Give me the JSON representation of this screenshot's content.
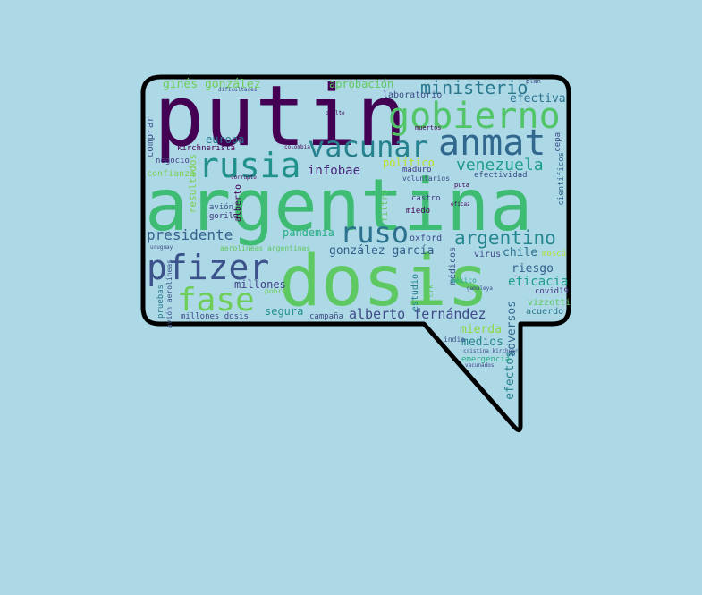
{
  "colors": {
    "background": "#add8e6",
    "bubble_outline": "#000000"
  },
  "words": {
    "putin": "putin",
    "argentina": "argentina",
    "dosis": "dosis",
    "gobierno": "gobierno",
    "anmat": "anmat",
    "vacunar": "vacunar",
    "rusia": "rusia",
    "pfizer": "pfizer",
    "fase": "fase",
    "ruso": "ruso",
    "argentino": "argentino",
    "venezuela": "venezuela",
    "ministerio": "ministerio",
    "presidente": "presidente",
    "alberto_fernandez": "alberto fernández",
    "gonzalez_garcia": "gonzález garcía",
    "gines_gonzalez": "ginés gonzález",
    "aprobacion": "aprobación",
    "infobae": "infobae",
    "pandemia": "pandemia",
    "europa": "europa",
    "efectiva": "efectiva",
    "millones": "millones",
    "segura": "segura",
    "eficacia": "eficacia",
    "chile": "chile",
    "riesgo": "riesgo",
    "mierda": "mierda",
    "medios": "medios",
    "efectos": "efectos",
    "adversos": "adversos",
    "politico": "político",
    "laboratorio": "laboratorio",
    "comprar": "comprar",
    "resultados": "resultados",
    "confianza": "confianza",
    "kirchnerista": "kirchnerista",
    "negocio": "negocio",
    "avion": "avión",
    "gorila": "gorila",
    "alberto": "alberto",
    "oxford": "oxford",
    "estudio": "estudio",
    "medicos": "médicos",
    "virus": "virus",
    "filtro": "filtro",
    "miedo": "miedo",
    "castro": "castro",
    "maduro": "maduro",
    "voluntarios": "voluntarios",
    "efectividad": "efectividad",
    "cientificos": "científicos",
    "cepa": "cepa",
    "vizzotti": "vizzotti",
    "acuerdo": "acuerdo",
    "covid19": "covid19",
    "emergencia": "emergencia",
    "india": "india",
    "mexico": "méxico",
    "pruebas": "pruebas",
    "avion_aerolineas": "avión aerolíneas",
    "millones_dosis": "millones dosis",
    "campana": "campaña",
    "moscu": "moscú",
    "aerolineas_argentinas": "aerolíneas argentinas",
    "pobre": "pobre",
    "dificultades": "dificultades",
    "plan": "plan",
    "oculto": "oculto",
    "colombia": "colombia",
    "corrupto": "corrupto",
    "puta": "puta",
    "eficaz": "eficaz",
    "cristina_kirchner": "cristina kirchner",
    "uruguay": "uruguay",
    "gamaleya": "gamaleya",
    "vacunados": "vacunados",
    "muertos": "muertos",
    "cfk": "cfk"
  }
}
